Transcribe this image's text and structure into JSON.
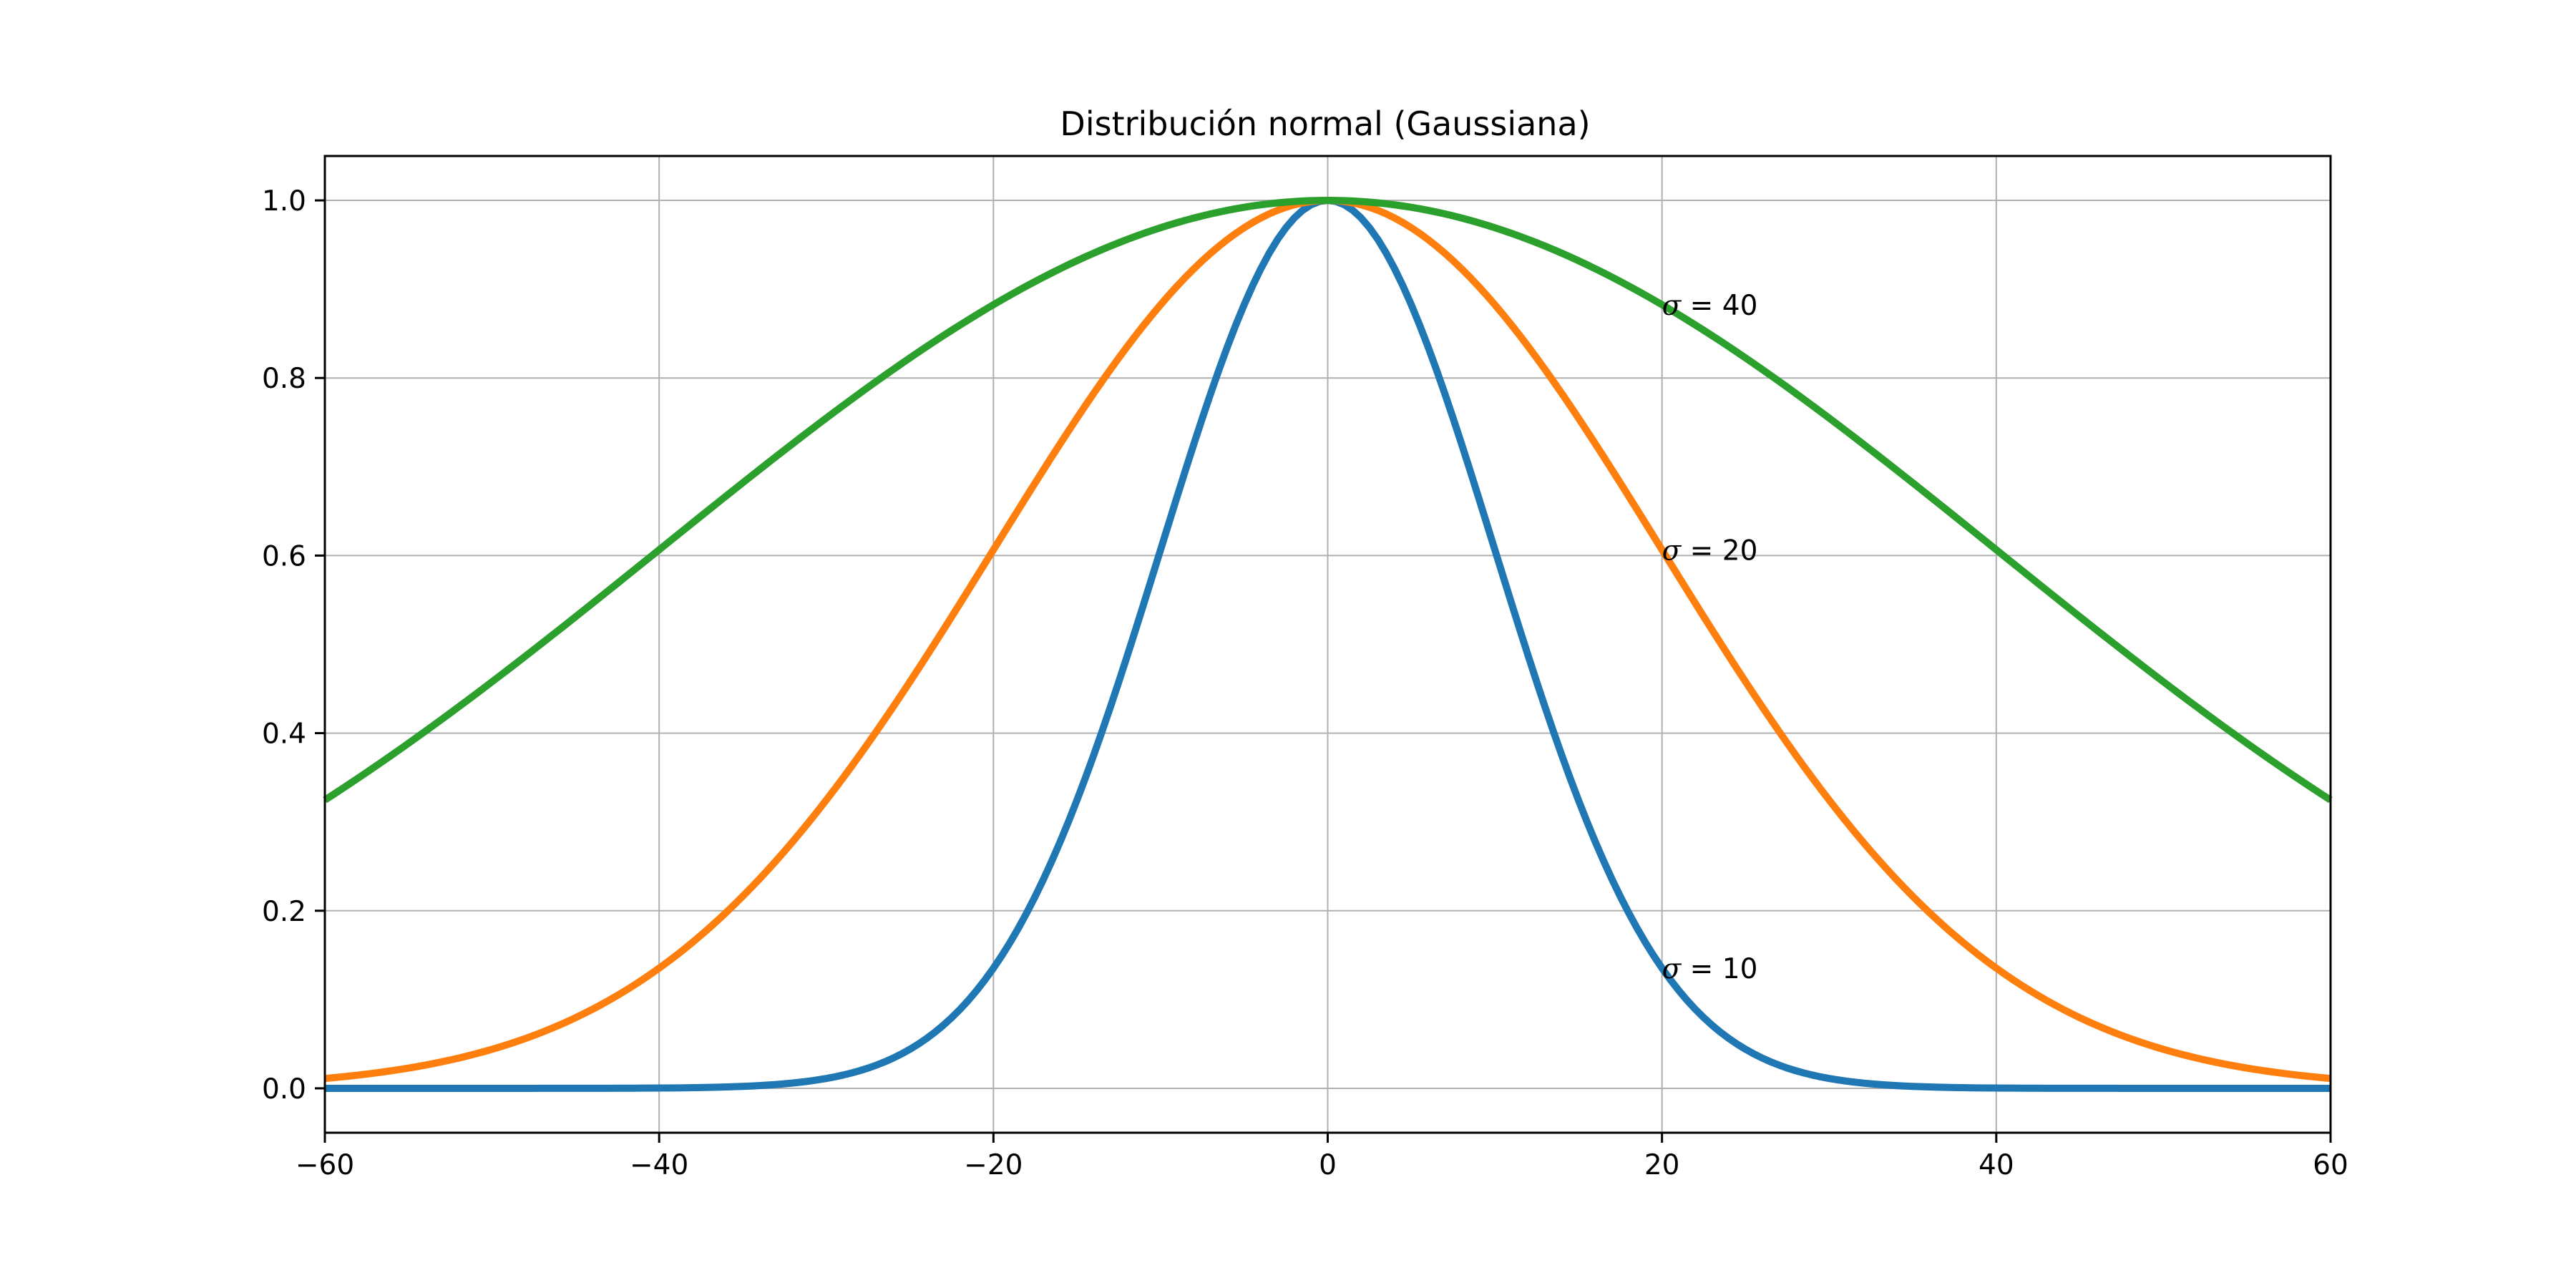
{
  "chart_data": {
    "type": "line",
    "title": "Distribución normal (Gaussiana)",
    "xlabel": "",
    "ylabel": "",
    "xlim": [
      -60,
      60
    ],
    "ylim": [
      -0.05,
      1.05
    ],
    "x_ticks": [
      -60,
      -40,
      -20,
      0,
      20,
      40,
      60
    ],
    "x_tick_labels": [
      "−60",
      "−40",
      "−20",
      "0",
      "20",
      "40",
      "60"
    ],
    "y_ticks": [
      0.0,
      0.2,
      0.4,
      0.6,
      0.8,
      1.0
    ],
    "y_tick_labels": [
      "0.0",
      "0.2",
      "0.4",
      "0.6",
      "0.8",
      "1.0"
    ],
    "grid": true,
    "series": [
      {
        "sigma": 10,
        "color": "#1f77b4",
        "x": [
          -60,
          -55,
          -50,
          -45,
          -40,
          -35,
          -30,
          -25,
          -20,
          -15,
          -10,
          -5,
          0,
          5,
          10,
          15,
          20,
          25,
          30,
          35,
          40,
          45,
          50,
          55,
          60
        ],
        "y": [
          0.0,
          0.0,
          0.0,
          0.0,
          0.0003,
          0.0022,
          0.0111,
          0.0439,
          0.1353,
          0.3247,
          0.6065,
          0.8825,
          1.0,
          0.8825,
          0.6065,
          0.3247,
          0.1353,
          0.0439,
          0.0111,
          0.0022,
          0.0003,
          0.0,
          0.0,
          0.0,
          0.0
        ]
      },
      {
        "sigma": 20,
        "color": "#ff7f0e",
        "x": [
          -60,
          -55,
          -50,
          -45,
          -40,
          -35,
          -30,
          -25,
          -20,
          -15,
          -10,
          -5,
          0,
          5,
          10,
          15,
          20,
          25,
          30,
          35,
          40,
          45,
          50,
          55,
          60
        ],
        "y": [
          0.0111,
          0.0228,
          0.0439,
          0.0796,
          0.1353,
          0.2163,
          0.3247,
          0.4578,
          0.6065,
          0.7548,
          0.8825,
          0.9692,
          1.0,
          0.9692,
          0.8825,
          0.7548,
          0.6065,
          0.4578,
          0.3247,
          0.2163,
          0.1353,
          0.0796,
          0.0439,
          0.0228,
          0.0111
        ]
      },
      {
        "sigma": 40,
        "color": "#2ca02c",
        "x": [
          -60,
          -55,
          -50,
          -45,
          -40,
          -35,
          -30,
          -25,
          -20,
          -15,
          -10,
          -5,
          0,
          5,
          10,
          15,
          20,
          25,
          30,
          35,
          40,
          45,
          50,
          55,
          60
        ],
        "y": [
          0.3247,
          0.3889,
          0.4578,
          0.5314,
          0.6065,
          0.6819,
          0.7548,
          0.8226,
          0.8825,
          0.9321,
          0.9692,
          0.9922,
          1.0,
          0.9922,
          0.9692,
          0.9321,
          0.8825,
          0.8226,
          0.7548,
          0.6819,
          0.6065,
          0.5314,
          0.4578,
          0.3889,
          0.3247
        ]
      }
    ],
    "annotations": [
      {
        "symbol": "σ",
        "text": " = 40",
        "x": 20,
        "y": 0.8825
      },
      {
        "symbol": "σ",
        "text": " = 20",
        "x": 20,
        "y": 0.6065
      },
      {
        "symbol": "σ",
        "text": " = 10",
        "x": 20,
        "y": 0.1353
      }
    ]
  }
}
